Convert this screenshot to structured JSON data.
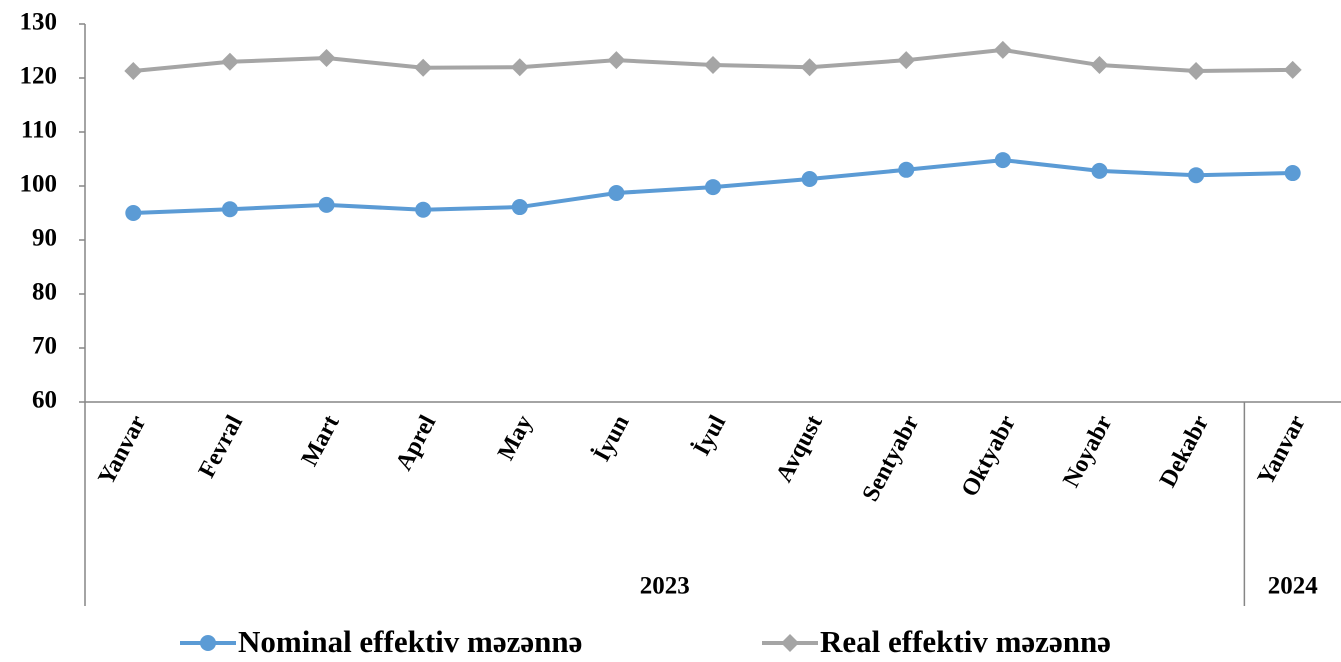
{
  "chart_data": {
    "type": "line",
    "categories": [
      "Yanvar",
      "Fevral",
      "Mart",
      "Aprel",
      "May",
      "İyun",
      "İyul",
      "Avqust",
      "Sentyabr",
      "Oktyabr",
      "Noyabr",
      "Dekabr",
      "Yanvar"
    ],
    "groups": [
      {
        "label": "2023",
        "span": 12
      },
      {
        "label": "2024",
        "span": 1
      }
    ],
    "series": [
      {
        "name": "Nominal effektiv məzənnə",
        "color": "#5b9bd5",
        "marker": "circle",
        "values": [
          95.0,
          95.7,
          96.5,
          95.6,
          96.1,
          98.7,
          99.8,
          101.3,
          103.0,
          104.8,
          102.8,
          102.0,
          102.4
        ]
      },
      {
        "name": "Real effektiv məzənnə",
        "color": "#a5a5a5",
        "marker": "diamond",
        "values": [
          121.3,
          123.0,
          123.7,
          121.9,
          122.0,
          123.3,
          122.4,
          122.0,
          123.3,
          125.2,
          122.4,
          121.3,
          121.5
        ]
      }
    ],
    "ylim": [
      60,
      130
    ],
    "yticks": [
      60,
      70,
      80,
      90,
      100,
      110,
      120,
      130
    ],
    "legend": "bottom"
  }
}
